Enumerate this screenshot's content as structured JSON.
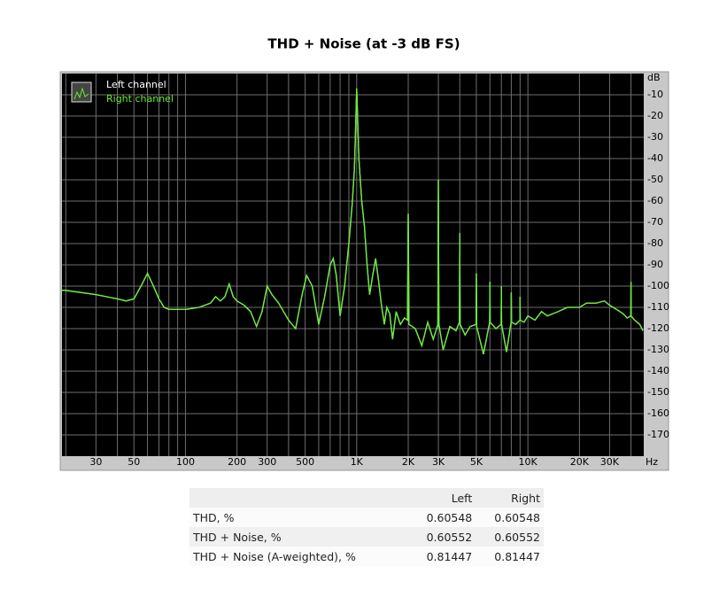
{
  "chart_data": {
    "type": "line",
    "title": "THD + Noise (at -3 dB FS)",
    "x_label": "Hz",
    "y_label": "dB",
    "xscale": "log",
    "grid": true,
    "legend": "top-left",
    "xlim": [
      19,
      47500
    ],
    "ylim": [
      -180,
      0
    ],
    "xticks": [
      30,
      50,
      100,
      200,
      300,
      500,
      {
        "value": 1000,
        "label": "1K"
      },
      {
        "value": 2000,
        "label": "2K"
      },
      {
        "value": 3000,
        "label": "3K"
      },
      {
        "value": 5000,
        "label": "5K"
      },
      {
        "value": 10000,
        "label": "10K"
      },
      {
        "value": 20000,
        "label": "20K"
      },
      {
        "value": 30000,
        "label": "30K"
      }
    ],
    "xgrid": [
      20,
      30,
      40,
      50,
      60,
      70,
      80,
      90,
      100,
      200,
      300,
      400,
      500,
      600,
      700,
      800,
      900,
      1000,
      2000,
      3000,
      4000,
      5000,
      6000,
      7000,
      8000,
      9000,
      10000,
      20000,
      30000,
      40000
    ],
    "yticks": [
      -10,
      -20,
      -30,
      -40,
      -50,
      -60,
      -70,
      -80,
      -90,
      -100,
      -110,
      -120,
      -130,
      -140,
      -150,
      -160,
      -170
    ],
    "x": [
      19,
      20,
      30,
      40,
      45,
      50,
      55,
      60,
      65,
      70,
      75,
      80,
      100,
      120,
      140,
      150,
      160,
      170,
      180,
      190,
      200,
      220,
      240,
      260,
      280,
      300,
      320,
      350,
      400,
      440,
      480,
      510,
      550,
      600,
      650,
      700,
      730,
      760,
      800,
      850,
      900,
      940,
      970,
      1000,
      1030,
      1070,
      1110,
      1150,
      1190,
      1240,
      1290,
      1340,
      1390,
      1450,
      1500,
      1560,
      1620,
      1700,
      1800,
      1900,
      1980,
      2000,
      2020,
      2200,
      2400,
      2600,
      2800,
      2980,
      3000,
      3020,
      3200,
      3500,
      3800,
      3980,
      4000,
      4020,
      4300,
      4600,
      4980,
      5000,
      5020,
      5500,
      5980,
      6000,
      6020,
      6500,
      6980,
      7000,
      7020,
      7500,
      7980,
      8000,
      8020,
      8500,
      8980,
      9000,
      9020,
      9500,
      10000,
      11000,
      12000,
      13000,
      15000,
      17000,
      20000,
      22000,
      25000,
      28000,
      30000,
      33000,
      36000,
      38000,
      39900,
      40000,
      40100,
      42000,
      45000,
      47000
    ],
    "series": [
      {
        "name": "Left channel",
        "color": "#ffffff",
        "values": [
          -102,
          -102,
          -104,
          -106,
          -107,
          -106,
          -100,
          -94,
          -100,
          -106,
          -110,
          -111,
          -111,
          -110,
          -108,
          -105,
          -107,
          -105,
          -99,
          -105,
          -107,
          -109,
          -112,
          -119,
          -112,
          -100,
          -104,
          -108,
          -116,
          -120,
          -104,
          -95,
          -100,
          -118,
          -105,
          -90,
          -87,
          -95,
          -114,
          -100,
          -80,
          -62,
          -45,
          -7,
          -40,
          -60,
          -72,
          -90,
          -104,
          -95,
          -87,
          -97,
          -108,
          -118,
          -110,
          -113,
          -125,
          -112,
          -118,
          -115,
          -116,
          -66,
          -118,
          -120,
          -128,
          -117,
          -125,
          -118,
          -50,
          -118,
          -130,
          -119,
          -121,
          -117,
          -75,
          -118,
          -123,
          -119,
          -118,
          -94,
          -119,
          -132,
          -117,
          -98,
          -117,
          -120,
          -118,
          -100,
          -118,
          -131,
          -117,
          -103,
          -117,
          -118,
          -116,
          -105,
          -116,
          -117,
          -114,
          -116,
          -112,
          -114,
          -112,
          -110,
          -110,
          -108,
          -108,
          -107,
          -109,
          -111,
          -113,
          -115,
          -114,
          -98,
          -114,
          -116,
          -118,
          -121
        ]
      },
      {
        "name": "Right channel",
        "color": "#66ee33",
        "values": [
          -102,
          -102,
          -104,
          -106,
          -107,
          -106,
          -100,
          -94,
          -100,
          -106,
          -110,
          -111,
          -111,
          -110,
          -108,
          -105,
          -107,
          -105,
          -99,
          -105,
          -107,
          -109,
          -112,
          -119,
          -112,
          -100,
          -104,
          -108,
          -116,
          -120,
          -104,
          -95,
          -100,
          -118,
          -105,
          -90,
          -87,
          -95,
          -114,
          -100,
          -80,
          -62,
          -45,
          -7,
          -40,
          -60,
          -72,
          -90,
          -104,
          -95,
          -87,
          -97,
          -108,
          -118,
          -110,
          -113,
          -125,
          -112,
          -118,
          -115,
          -116,
          -66,
          -118,
          -120,
          -128,
          -117,
          -125,
          -118,
          -50,
          -118,
          -130,
          -119,
          -121,
          -117,
          -75,
          -118,
          -123,
          -119,
          -118,
          -94,
          -119,
          -132,
          -117,
          -98,
          -117,
          -120,
          -118,
          -100,
          -118,
          -131,
          -117,
          -103,
          -117,
          -118,
          -116,
          -105,
          -116,
          -117,
          -114,
          -116,
          -112,
          -114,
          -112,
          -110,
          -110,
          -108,
          -108,
          -107,
          -109,
          -111,
          -113,
          -115,
          -114,
          -98,
          -114,
          -116,
          -118,
          -121
        ]
      }
    ]
  },
  "table": {
    "columns": [
      "Left",
      "Right"
    ],
    "rows": [
      [
        "THD, %",
        "0.60548",
        "0.60548"
      ],
      [
        "THD + Noise, %",
        "0.60552",
        "0.60552"
      ],
      [
        "THD + Noise (A-weighted), %",
        "0.81447",
        "0.81447"
      ]
    ]
  }
}
